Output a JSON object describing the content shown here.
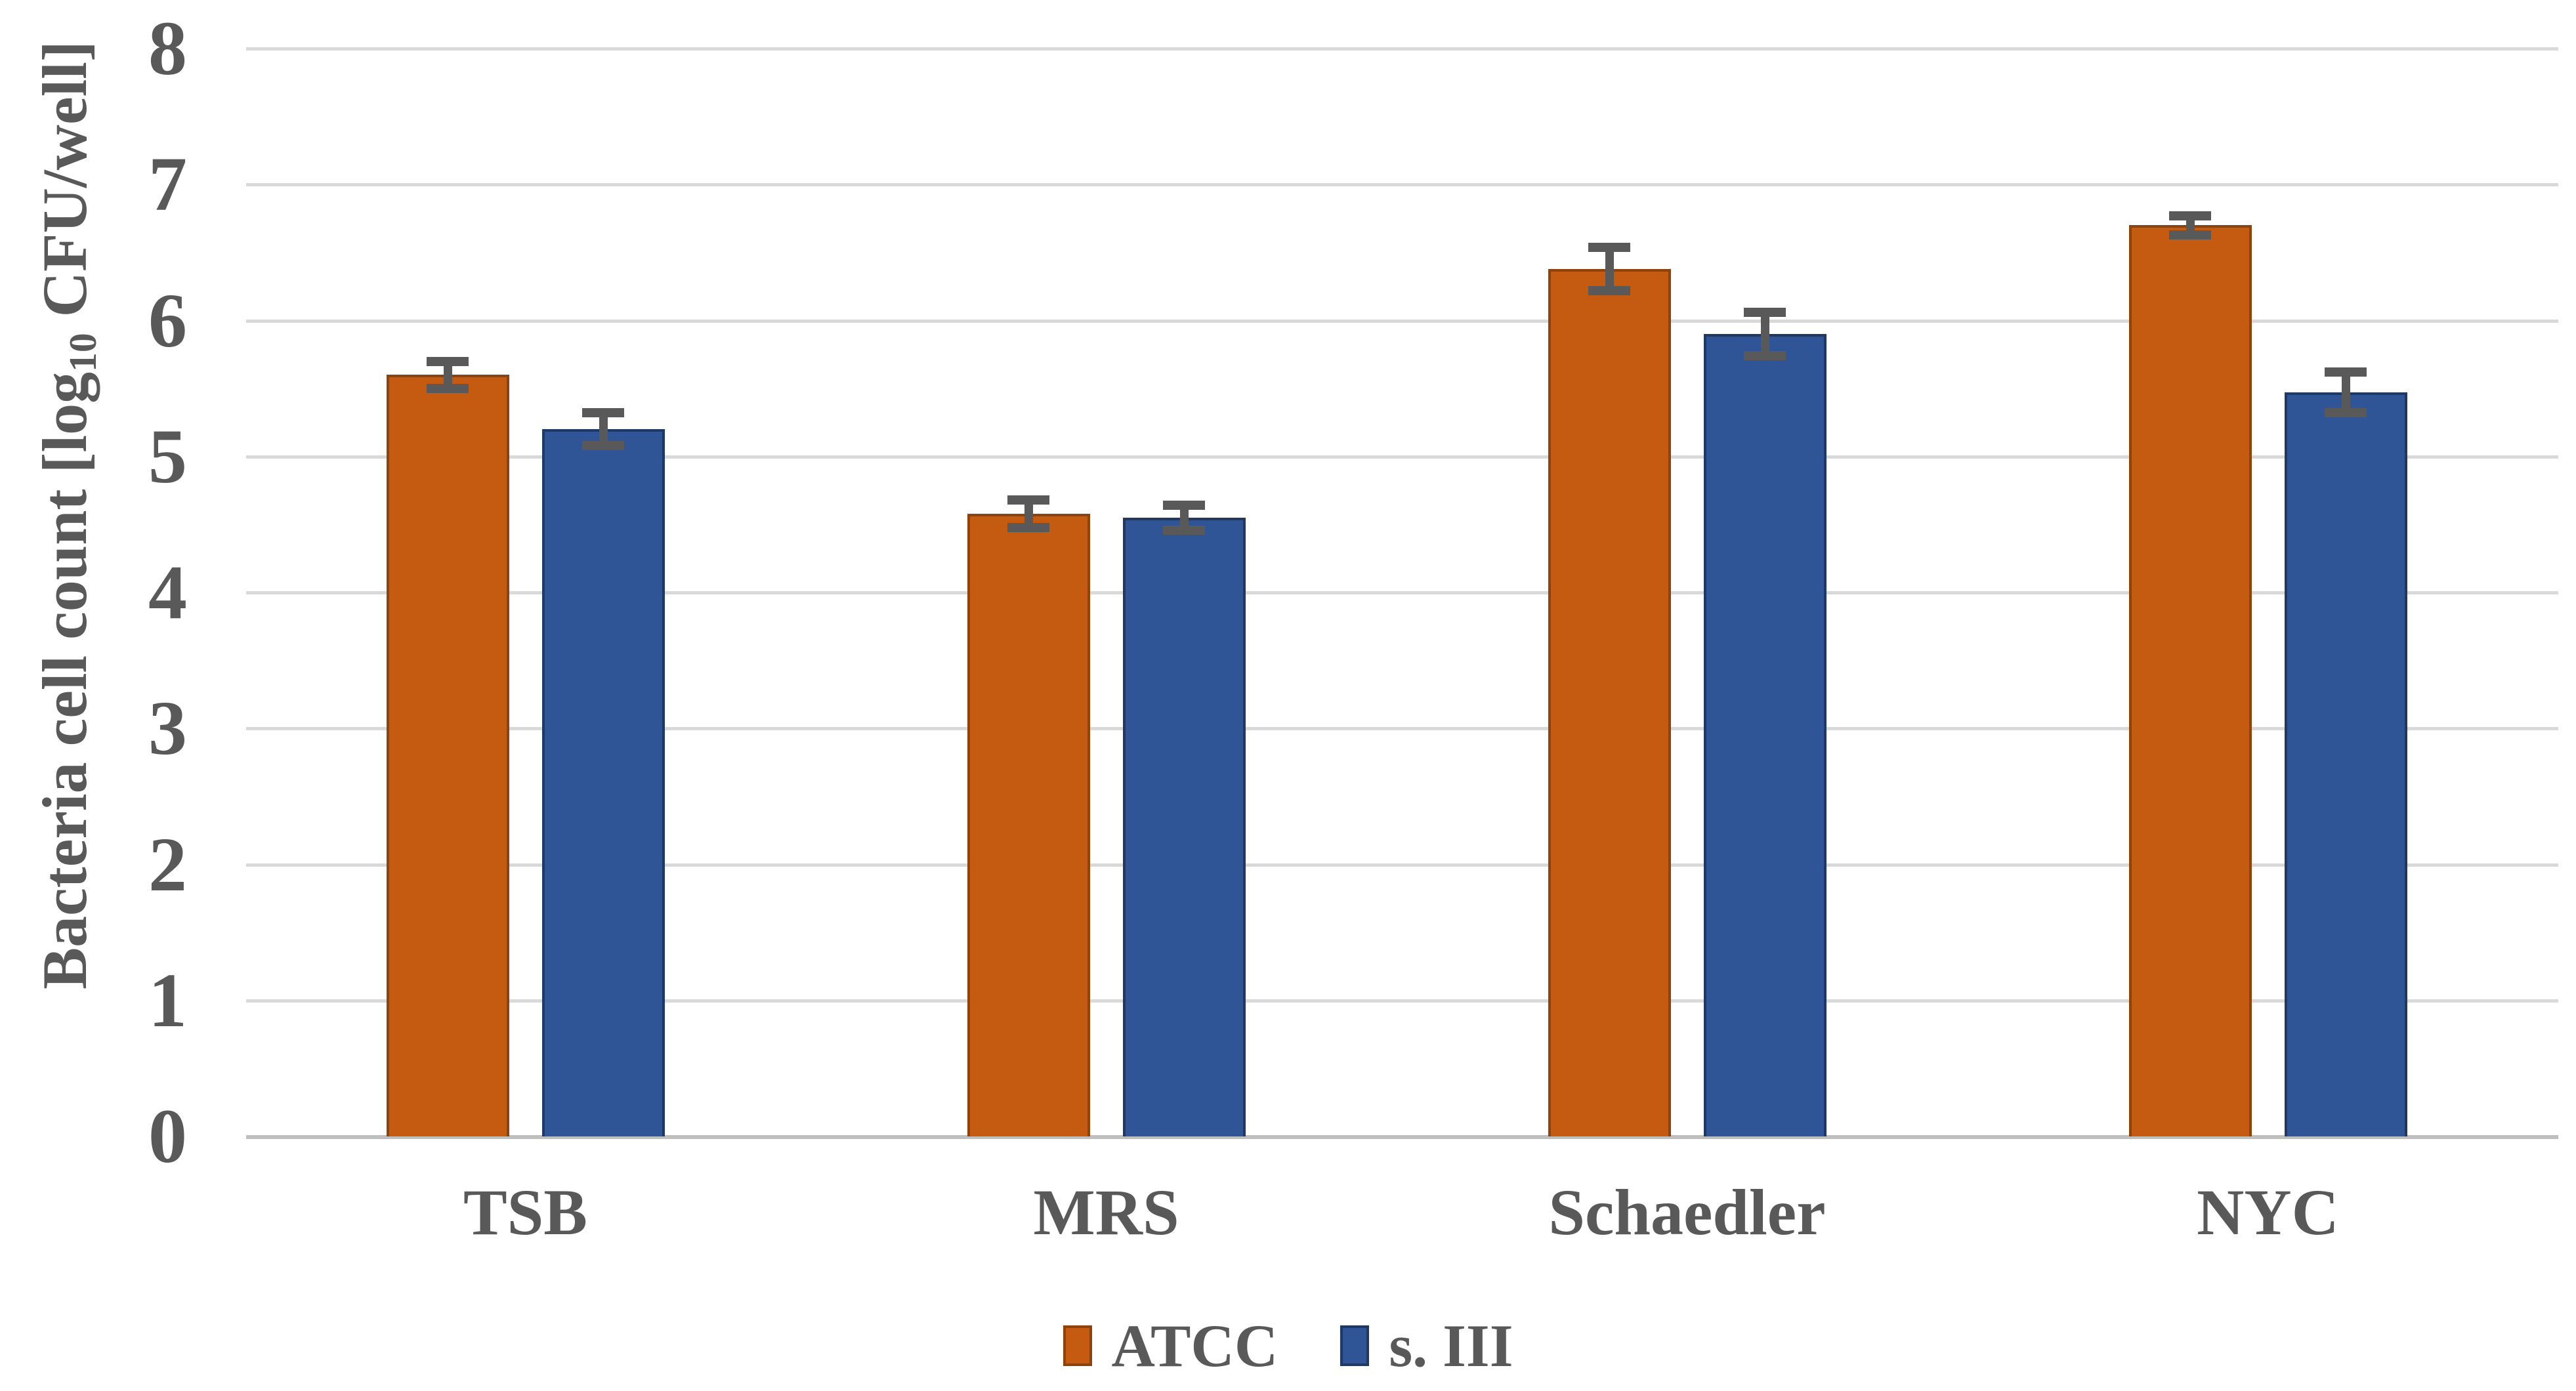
{
  "figure": {
    "background": "#FFFFFF",
    "text_color": "#595959",
    "gridline_color": "#D9D9D9",
    "axis_line_color": "#BFBFBF",
    "error_bar_color": "#595959"
  },
  "y_axis": {
    "label_prefix": "Bacteria cell count [log",
    "label_sub": "10",
    "label_suffix": " CFU/well]",
    "ticks": [
      "0",
      "1",
      "2",
      "3",
      "4",
      "5",
      "6",
      "7",
      "8"
    ],
    "min": 0,
    "max": 8
  },
  "chart_data": {
    "type": "bar",
    "title": "",
    "xlabel": "",
    "ylabel": "Bacteria cell count [log10 CFU/well]",
    "categories": [
      "TSB",
      "MRS",
      "Schaedler",
      "NYC"
    ],
    "series": [
      {
        "name": "ATCC",
        "color": "#C55A11",
        "border_color": "#8E430D",
        "values": [
          5.6,
          4.58,
          6.38,
          6.7
        ],
        "errors": [
          0.1,
          0.1,
          0.16,
          0.07
        ]
      },
      {
        "name": "s. III",
        "color": "#2F5597",
        "border_color": "#1F3864",
        "values": [
          5.2,
          4.55,
          5.9,
          5.47
        ],
        "errors": [
          0.12,
          0.09,
          0.16,
          0.15
        ]
      }
    ],
    "ylim": [
      0,
      8
    ],
    "ytick_step": 1,
    "grid": true,
    "legend_position": "bottom"
  }
}
